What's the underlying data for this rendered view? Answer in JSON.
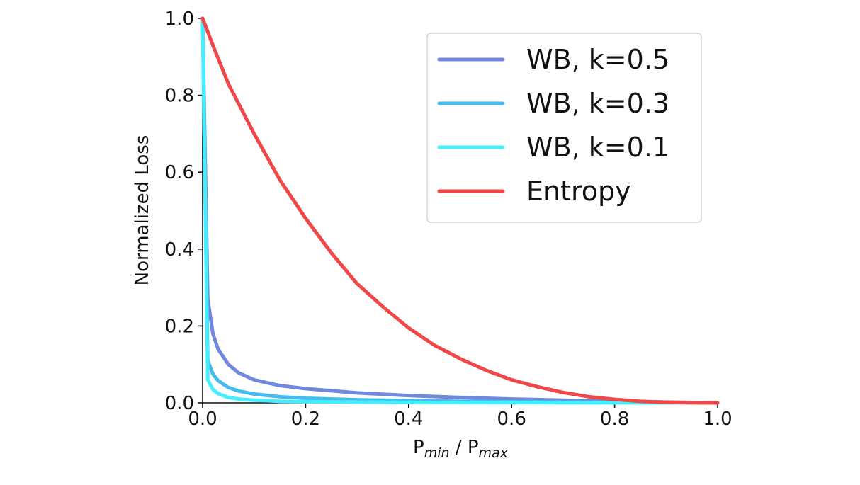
{
  "chart_data": {
    "type": "line",
    "xlabel": {
      "main1": "P",
      "sub1": "min",
      "sep": " / P",
      "sub2": "max"
    },
    "ylabel": "Normalized Loss",
    "xlim": [
      0.0,
      1.0
    ],
    "ylim": [
      0.0,
      1.0
    ],
    "xticks": [
      "0.0",
      "0.2",
      "0.4",
      "0.6",
      "0.8",
      "1.0"
    ],
    "yticks": [
      "0.0",
      "0.2",
      "0.4",
      "0.6",
      "0.8",
      "1.0"
    ],
    "grid": false,
    "legend_position": "upper-right",
    "series": [
      {
        "name": "WB, k=0.5",
        "color": "#7088dd",
        "x": [
          0.0,
          0.01,
          0.02,
          0.03,
          0.05,
          0.07,
          0.1,
          0.15,
          0.2,
          0.3,
          0.4,
          0.5,
          0.6,
          0.7,
          0.8,
          0.9,
          1.0
        ],
        "y": [
          1.0,
          0.27,
          0.18,
          0.14,
          0.1,
          0.078,
          0.06,
          0.045,
          0.037,
          0.026,
          0.019,
          0.014,
          0.01,
          0.007,
          0.004,
          0.002,
          0.0
        ]
      },
      {
        "name": "WB, k=0.3",
        "color": "#44bbf0",
        "x": [
          0.0,
          0.01,
          0.02,
          0.03,
          0.05,
          0.07,
          0.1,
          0.15,
          0.2,
          0.3,
          0.4,
          0.5,
          0.6,
          0.7,
          0.8,
          0.9,
          1.0
        ],
        "y": [
          1.0,
          0.11,
          0.075,
          0.058,
          0.04,
          0.031,
          0.023,
          0.016,
          0.012,
          0.008,
          0.006,
          0.004,
          0.003,
          0.002,
          0.001,
          0.0005,
          0.0
        ]
      },
      {
        "name": "WB, k=0.1",
        "color": "#44eeff",
        "x": [
          0.0,
          0.01,
          0.02,
          0.03,
          0.05,
          0.07,
          0.1,
          0.15,
          0.2,
          0.3,
          0.4,
          0.5,
          0.6,
          0.7,
          0.8,
          0.9,
          1.0
        ],
        "y": [
          1.0,
          0.06,
          0.035,
          0.024,
          0.014,
          0.01,
          0.007,
          0.004,
          0.003,
          0.002,
          0.0012,
          0.0008,
          0.0005,
          0.0003,
          0.0002,
          0.0001,
          0.0
        ]
      },
      {
        "name": "Entropy",
        "color": "#f04848",
        "x": [
          0.0,
          0.02,
          0.05,
          0.1,
          0.15,
          0.2,
          0.25,
          0.3,
          0.35,
          0.4,
          0.45,
          0.5,
          0.55,
          0.6,
          0.65,
          0.7,
          0.75,
          0.8,
          0.85,
          0.9,
          0.95,
          1.0
        ],
        "y": [
          1.0,
          0.93,
          0.83,
          0.7,
          0.58,
          0.48,
          0.39,
          0.31,
          0.25,
          0.195,
          0.15,
          0.115,
          0.085,
          0.06,
          0.042,
          0.027,
          0.016,
          0.009,
          0.004,
          0.0015,
          0.0004,
          0.0
        ]
      }
    ]
  }
}
